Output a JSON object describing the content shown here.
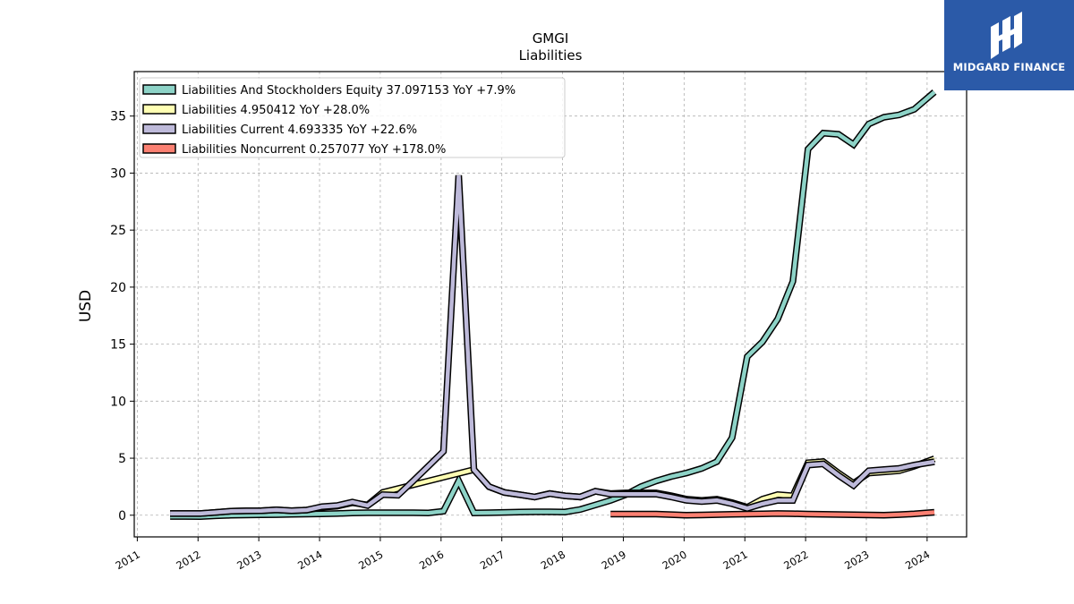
{
  "brand": {
    "name": "MIDGARD FINANCE",
    "color": "#2b5aa8"
  },
  "chart_data": {
    "type": "line",
    "title": "GMGI",
    "subtitle": "Liabilities",
    "xlabel": "",
    "ylabel": "USD",
    "xlim": [
      2010.95,
      2024.65
    ],
    "ylim": [
      -1.9,
      38.9
    ],
    "xticks": [
      2011,
      2012,
      2013,
      2014,
      2015,
      2016,
      2017,
      2018,
      2019,
      2020,
      2021,
      2022,
      2023,
      2024
    ],
    "yticks": [
      0,
      5,
      10,
      15,
      20,
      25,
      30,
      35
    ],
    "grid": true,
    "legend_position": "top-left",
    "series": [
      {
        "name": "Liabilities And Stockholders Equity  37.097153 YoY +7.9%",
        "color": "#8dd3c7",
        "points": [
          [
            2011.54,
            -0.1
          ],
          [
            2011.79,
            -0.1
          ],
          [
            2012.04,
            -0.12
          ],
          [
            2012.29,
            -0.05
          ],
          [
            2012.54,
            0.0
          ],
          [
            2012.79,
            0.02
          ],
          [
            2013.04,
            0.04
          ],
          [
            2013.29,
            0.05
          ],
          [
            2013.54,
            0.08
          ],
          [
            2013.79,
            0.1
          ],
          [
            2014.04,
            0.12
          ],
          [
            2014.29,
            0.15
          ],
          [
            2014.54,
            0.2
          ],
          [
            2014.79,
            0.22
          ],
          [
            2015.04,
            0.22
          ],
          [
            2015.29,
            0.22
          ],
          [
            2015.54,
            0.22
          ],
          [
            2015.79,
            0.2
          ],
          [
            2016.04,
            0.35
          ],
          [
            2016.29,
            3.0
          ],
          [
            2016.54,
            0.2
          ],
          [
            2016.79,
            0.22
          ],
          [
            2017.04,
            0.25
          ],
          [
            2017.29,
            0.28
          ],
          [
            2017.54,
            0.3
          ],
          [
            2017.79,
            0.3
          ],
          [
            2018.04,
            0.28
          ],
          [
            2018.29,
            0.5
          ],
          [
            2018.54,
            0.9
          ],
          [
            2018.79,
            1.3
          ],
          [
            2019.04,
            1.8
          ],
          [
            2019.29,
            2.5
          ],
          [
            2019.54,
            3.0
          ],
          [
            2019.79,
            3.4
          ],
          [
            2020.04,
            3.7
          ],
          [
            2020.29,
            4.1
          ],
          [
            2020.54,
            4.7
          ],
          [
            2020.79,
            6.8
          ],
          [
            2021.04,
            13.9
          ],
          [
            2021.29,
            15.2
          ],
          [
            2021.54,
            17.2
          ],
          [
            2021.79,
            20.5
          ],
          [
            2022.04,
            32.1
          ],
          [
            2022.29,
            33.5
          ],
          [
            2022.54,
            33.4
          ],
          [
            2022.79,
            32.5
          ],
          [
            2023.04,
            34.3
          ],
          [
            2023.29,
            34.9
          ],
          [
            2023.54,
            35.1
          ],
          [
            2023.79,
            35.6
          ],
          [
            2024.12,
            37.1
          ]
        ]
      },
      {
        "name": "Liabilities  4.950412 YoY +28.0%",
        "color": "#ffffb3",
        "points": [
          [
            2011.54,
            0.15
          ],
          [
            2011.79,
            0.15
          ],
          [
            2012.04,
            0.15
          ],
          [
            2012.29,
            0.25
          ],
          [
            2012.54,
            0.35
          ],
          [
            2012.79,
            0.38
          ],
          [
            2013.04,
            0.4
          ],
          [
            2013.29,
            0.48
          ],
          [
            2013.54,
            0.4
          ],
          [
            2013.79,
            0.45
          ],
          [
            2014.04,
            0.7
          ],
          [
            2014.29,
            0.8
          ],
          [
            2014.54,
            1.1
          ],
          [
            2014.79,
            0.9
          ],
          [
            2015.04,
            2.0
          ],
          [
            2016.54,
            4.0
          ],
          [
            2016.79,
            2.5
          ],
          [
            2017.04,
            2.0
          ],
          [
            2017.29,
            1.8
          ],
          [
            2017.54,
            1.6
          ],
          [
            2017.79,
            1.9
          ],
          [
            2018.04,
            1.7
          ],
          [
            2018.29,
            1.6
          ],
          [
            2018.54,
            2.1
          ],
          [
            2018.79,
            1.9
          ],
          [
            2019.04,
            1.95
          ],
          [
            2019.29,
            1.95
          ],
          [
            2019.54,
            1.95
          ],
          [
            2019.79,
            1.7
          ],
          [
            2020.04,
            1.4
          ],
          [
            2020.29,
            1.3
          ],
          [
            2020.54,
            1.4
          ],
          [
            2020.79,
            1.1
          ],
          [
            2021.04,
            0.7
          ],
          [
            2021.29,
            1.4
          ],
          [
            2021.54,
            1.8
          ],
          [
            2021.79,
            1.7
          ],
          [
            2022.04,
            4.6
          ],
          [
            2022.29,
            4.7
          ],
          [
            2022.54,
            3.7
          ],
          [
            2022.79,
            2.8
          ],
          [
            2023.04,
            3.7
          ],
          [
            2023.29,
            3.8
          ],
          [
            2023.54,
            3.9
          ],
          [
            2023.79,
            4.3
          ],
          [
            2024.12,
            4.95
          ]
        ]
      },
      {
        "name": "Liabilities Current  4.693335 YoY +22.6%",
        "color": "#bebada",
        "points": [
          [
            2011.54,
            0.15
          ],
          [
            2011.79,
            0.15
          ],
          [
            2012.04,
            0.15
          ],
          [
            2012.29,
            0.25
          ],
          [
            2012.54,
            0.35
          ],
          [
            2012.79,
            0.38
          ],
          [
            2013.04,
            0.4
          ],
          [
            2013.29,
            0.48
          ],
          [
            2013.54,
            0.4
          ],
          [
            2013.79,
            0.45
          ],
          [
            2014.04,
            0.75
          ],
          [
            2014.29,
            0.85
          ],
          [
            2014.54,
            1.15
          ],
          [
            2014.79,
            0.85
          ],
          [
            2015.04,
            1.8
          ],
          [
            2015.29,
            1.75
          ],
          [
            2015.54,
            3.0
          ],
          [
            2015.79,
            4.3
          ],
          [
            2016.04,
            5.6
          ],
          [
            2016.29,
            29.8
          ],
          [
            2016.54,
            4.0
          ],
          [
            2016.79,
            2.5
          ],
          [
            2017.04,
            2.0
          ],
          [
            2017.29,
            1.8
          ],
          [
            2017.54,
            1.6
          ],
          [
            2017.79,
            1.9
          ],
          [
            2018.04,
            1.7
          ],
          [
            2018.29,
            1.6
          ],
          [
            2018.54,
            2.1
          ],
          [
            2018.79,
            1.85
          ],
          [
            2019.04,
            1.85
          ],
          [
            2019.29,
            1.85
          ],
          [
            2019.54,
            1.85
          ],
          [
            2019.79,
            1.6
          ],
          [
            2020.04,
            1.3
          ],
          [
            2020.29,
            1.2
          ],
          [
            2020.54,
            1.3
          ],
          [
            2020.79,
            1.0
          ],
          [
            2021.04,
            0.6
          ],
          [
            2021.29,
            1.0
          ],
          [
            2021.54,
            1.3
          ],
          [
            2021.79,
            1.3
          ],
          [
            2022.04,
            4.4
          ],
          [
            2022.29,
            4.5
          ],
          [
            2022.54,
            3.5
          ],
          [
            2022.79,
            2.6
          ],
          [
            2023.04,
            3.9
          ],
          [
            2023.29,
            4.0
          ],
          [
            2023.54,
            4.1
          ],
          [
            2023.79,
            4.4
          ],
          [
            2024.12,
            4.69
          ]
        ]
      },
      {
        "name": "Liabilities Noncurrent  0.257077 YoY +178.0%",
        "color": "#fb8072",
        "points": [
          [
            2018.79,
            0.1
          ],
          [
            2019.04,
            0.1
          ],
          [
            2019.29,
            0.1
          ],
          [
            2019.54,
            0.1
          ],
          [
            2019.79,
            0.05
          ],
          [
            2020.04,
            0.0
          ],
          [
            2020.29,
            0.02
          ],
          [
            2020.54,
            0.05
          ],
          [
            2020.79,
            0.08
          ],
          [
            2021.04,
            0.1
          ],
          [
            2021.29,
            0.12
          ],
          [
            2021.54,
            0.15
          ],
          [
            2021.79,
            0.13
          ],
          [
            2022.04,
            0.1
          ],
          [
            2022.29,
            0.08
          ],
          [
            2022.54,
            0.06
          ],
          [
            2022.79,
            0.04
          ],
          [
            2023.04,
            0.02
          ],
          [
            2023.29,
            0.0
          ],
          [
            2023.54,
            0.05
          ],
          [
            2023.79,
            0.12
          ],
          [
            2024.12,
            0.26
          ]
        ]
      }
    ]
  }
}
